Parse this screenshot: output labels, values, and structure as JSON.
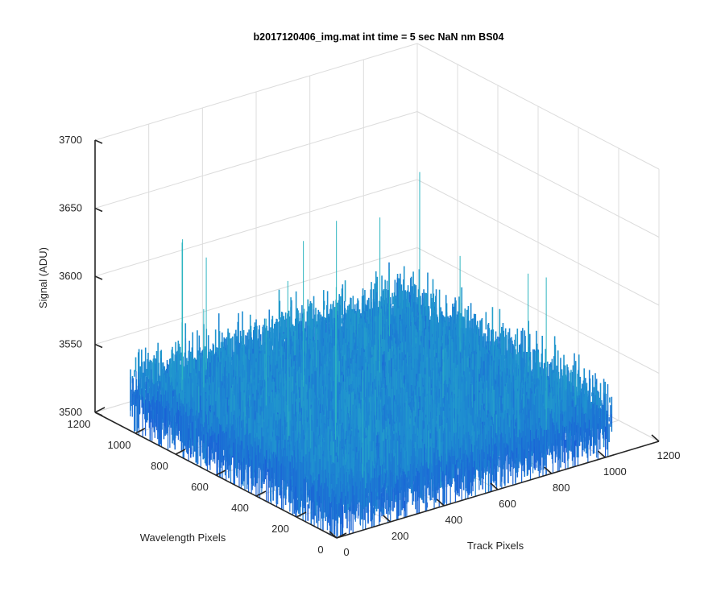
{
  "chart_data": {
    "type": "surface",
    "title": "b2017120406_img.mat int time = 5 sec  NaN nm BS04",
    "xlabel": "Track Pixels",
    "ylabel": "Wavelength Pixels",
    "zlabel": "Signal (ADU)",
    "xlim": [
      0,
      1200
    ],
    "ylim": [
      0,
      1200
    ],
    "zlim": [
      3500,
      3700
    ],
    "x_ticks": [
      "0",
      "200",
      "400",
      "600",
      "800",
      "1000",
      "1200"
    ],
    "y_ticks": [
      "0",
      "200",
      "400",
      "600",
      "800",
      "1000",
      "1200"
    ],
    "z_ticks": [
      "3500",
      "3550",
      "3600",
      "3650",
      "3700"
    ],
    "x_range": [
      0,
      1024
    ],
    "y_range": [
      0,
      1024
    ],
    "surface_mean": 3530,
    "surface_spread_low": 3505,
    "surface_spread_high": 3575,
    "outlier_peak": 3650,
    "grid": true,
    "colormap": "parula",
    "colors": {
      "low": "#1a5ad8",
      "mid": "#1e8fd0",
      "high": "#2db5c0"
    }
  }
}
